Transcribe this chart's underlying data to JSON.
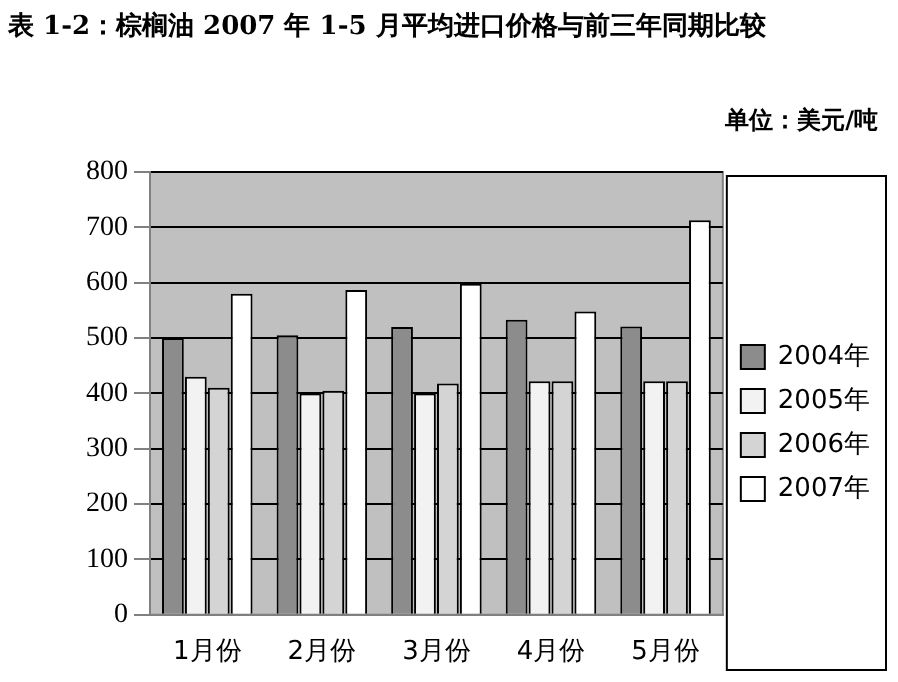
{
  "chart_data": {
    "type": "bar",
    "title": "表 1-2：棕榈油 2007 年 1-5 月平均进口价格与前三年同期比较",
    "annotations": [
      "单位：美元/吨"
    ],
    "categories": [
      "1月份",
      "2月份",
      "3月份",
      "4月份",
      "5月份"
    ],
    "series": [
      {
        "name": "2004年",
        "color": "#8c8c8c",
        "values": [
          500,
          505,
          520,
          533,
          521
        ]
      },
      {
        "name": "2005年",
        "color": "#f2f2f2",
        "values": [
          430,
          400,
          400,
          422,
          422
        ]
      },
      {
        "name": "2006年",
        "color": "#d4d4d4",
        "values": [
          410,
          405,
          418,
          422,
          422
        ]
      },
      {
        "name": "2007年",
        "color": "#ffffff",
        "values": [
          580,
          587,
          598,
          548,
          713
        ]
      }
    ],
    "ylim": [
      0,
      800
    ],
    "yticks": [
      0,
      100,
      200,
      300,
      400,
      500,
      600,
      700,
      800
    ],
    "grid": "y",
    "legend": "right"
  }
}
